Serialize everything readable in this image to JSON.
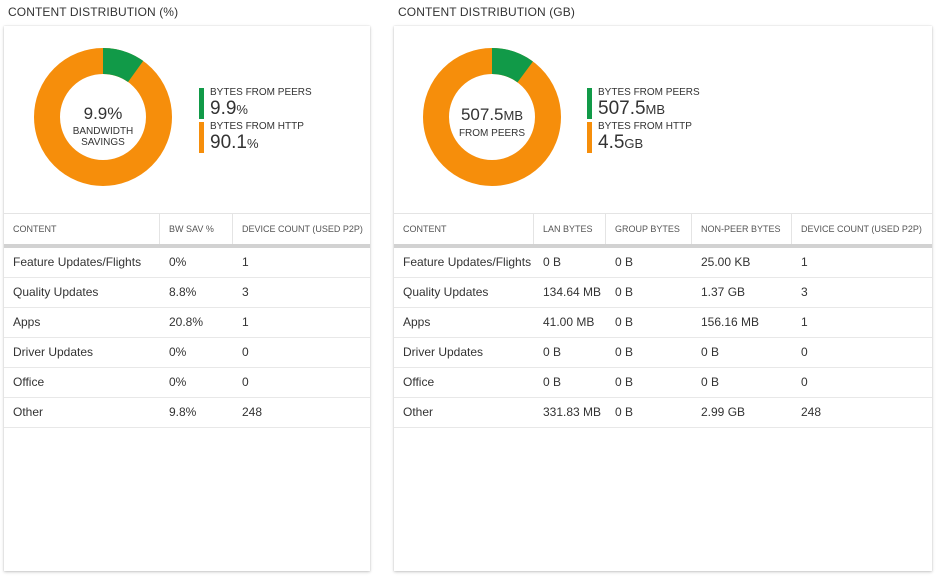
{
  "colors": {
    "peers": "#119a48",
    "http": "#f68e0b"
  },
  "left": {
    "title": "CONTENT DISTRIBUTION (%)",
    "center_value": "9.9%",
    "center_label_line1": "BANDWIDTH",
    "center_label_line2": "SAVINGS",
    "peers_fraction": 0.099,
    "legend": [
      {
        "label": "BYTES FROM PEERS",
        "value": "9.9",
        "unit": "%"
      },
      {
        "label": "BYTES FROM HTTP",
        "value": "90.1",
        "unit": "%"
      }
    ],
    "columns": [
      "CONTENT",
      "BW SAV %",
      "DEVICE COUNT (USED P2P)"
    ],
    "rows": [
      [
        "Feature Updates/Flights",
        "0%",
        "1"
      ],
      [
        "Quality Updates",
        "8.8%",
        "3"
      ],
      [
        "Apps",
        "20.8%",
        "1"
      ],
      [
        "Driver Updates",
        "0%",
        "0"
      ],
      [
        "Office",
        "0%",
        "0"
      ],
      [
        "Other",
        "9.8%",
        "248"
      ]
    ]
  },
  "right": {
    "title": "CONTENT DISTRIBUTION (GB)",
    "center_value": "507.5",
    "center_unit": "MB",
    "center_label_line1": "FROM PEERS",
    "peers_fraction": 0.101,
    "legend": [
      {
        "label": "BYTES FROM PEERS",
        "value": "507.5",
        "unit": "MB"
      },
      {
        "label": "BYTES FROM HTTP",
        "value": "4.5",
        "unit": "GB"
      }
    ],
    "columns": [
      "CONTENT",
      "LAN BYTES",
      "GROUP BYTES",
      "NON-PEER BYTES",
      "DEVICE COUNT (USED P2P)"
    ],
    "rows": [
      [
        "Feature Updates/Flights",
        "0 B",
        "0 B",
        "25.00 KB",
        "1"
      ],
      [
        "Quality Updates",
        "134.64 MB",
        "0 B",
        "1.37 GB",
        "3"
      ],
      [
        "Apps",
        "41.00 MB",
        "0 B",
        "156.16 MB",
        "1"
      ],
      [
        "Driver Updates",
        "0 B",
        "0 B",
        "0 B",
        "0"
      ],
      [
        "Office",
        "0 B",
        "0 B",
        "0 B",
        "0"
      ],
      [
        "Other",
        "331.83 MB",
        "0 B",
        "2.99 GB",
        "248"
      ]
    ]
  }
}
